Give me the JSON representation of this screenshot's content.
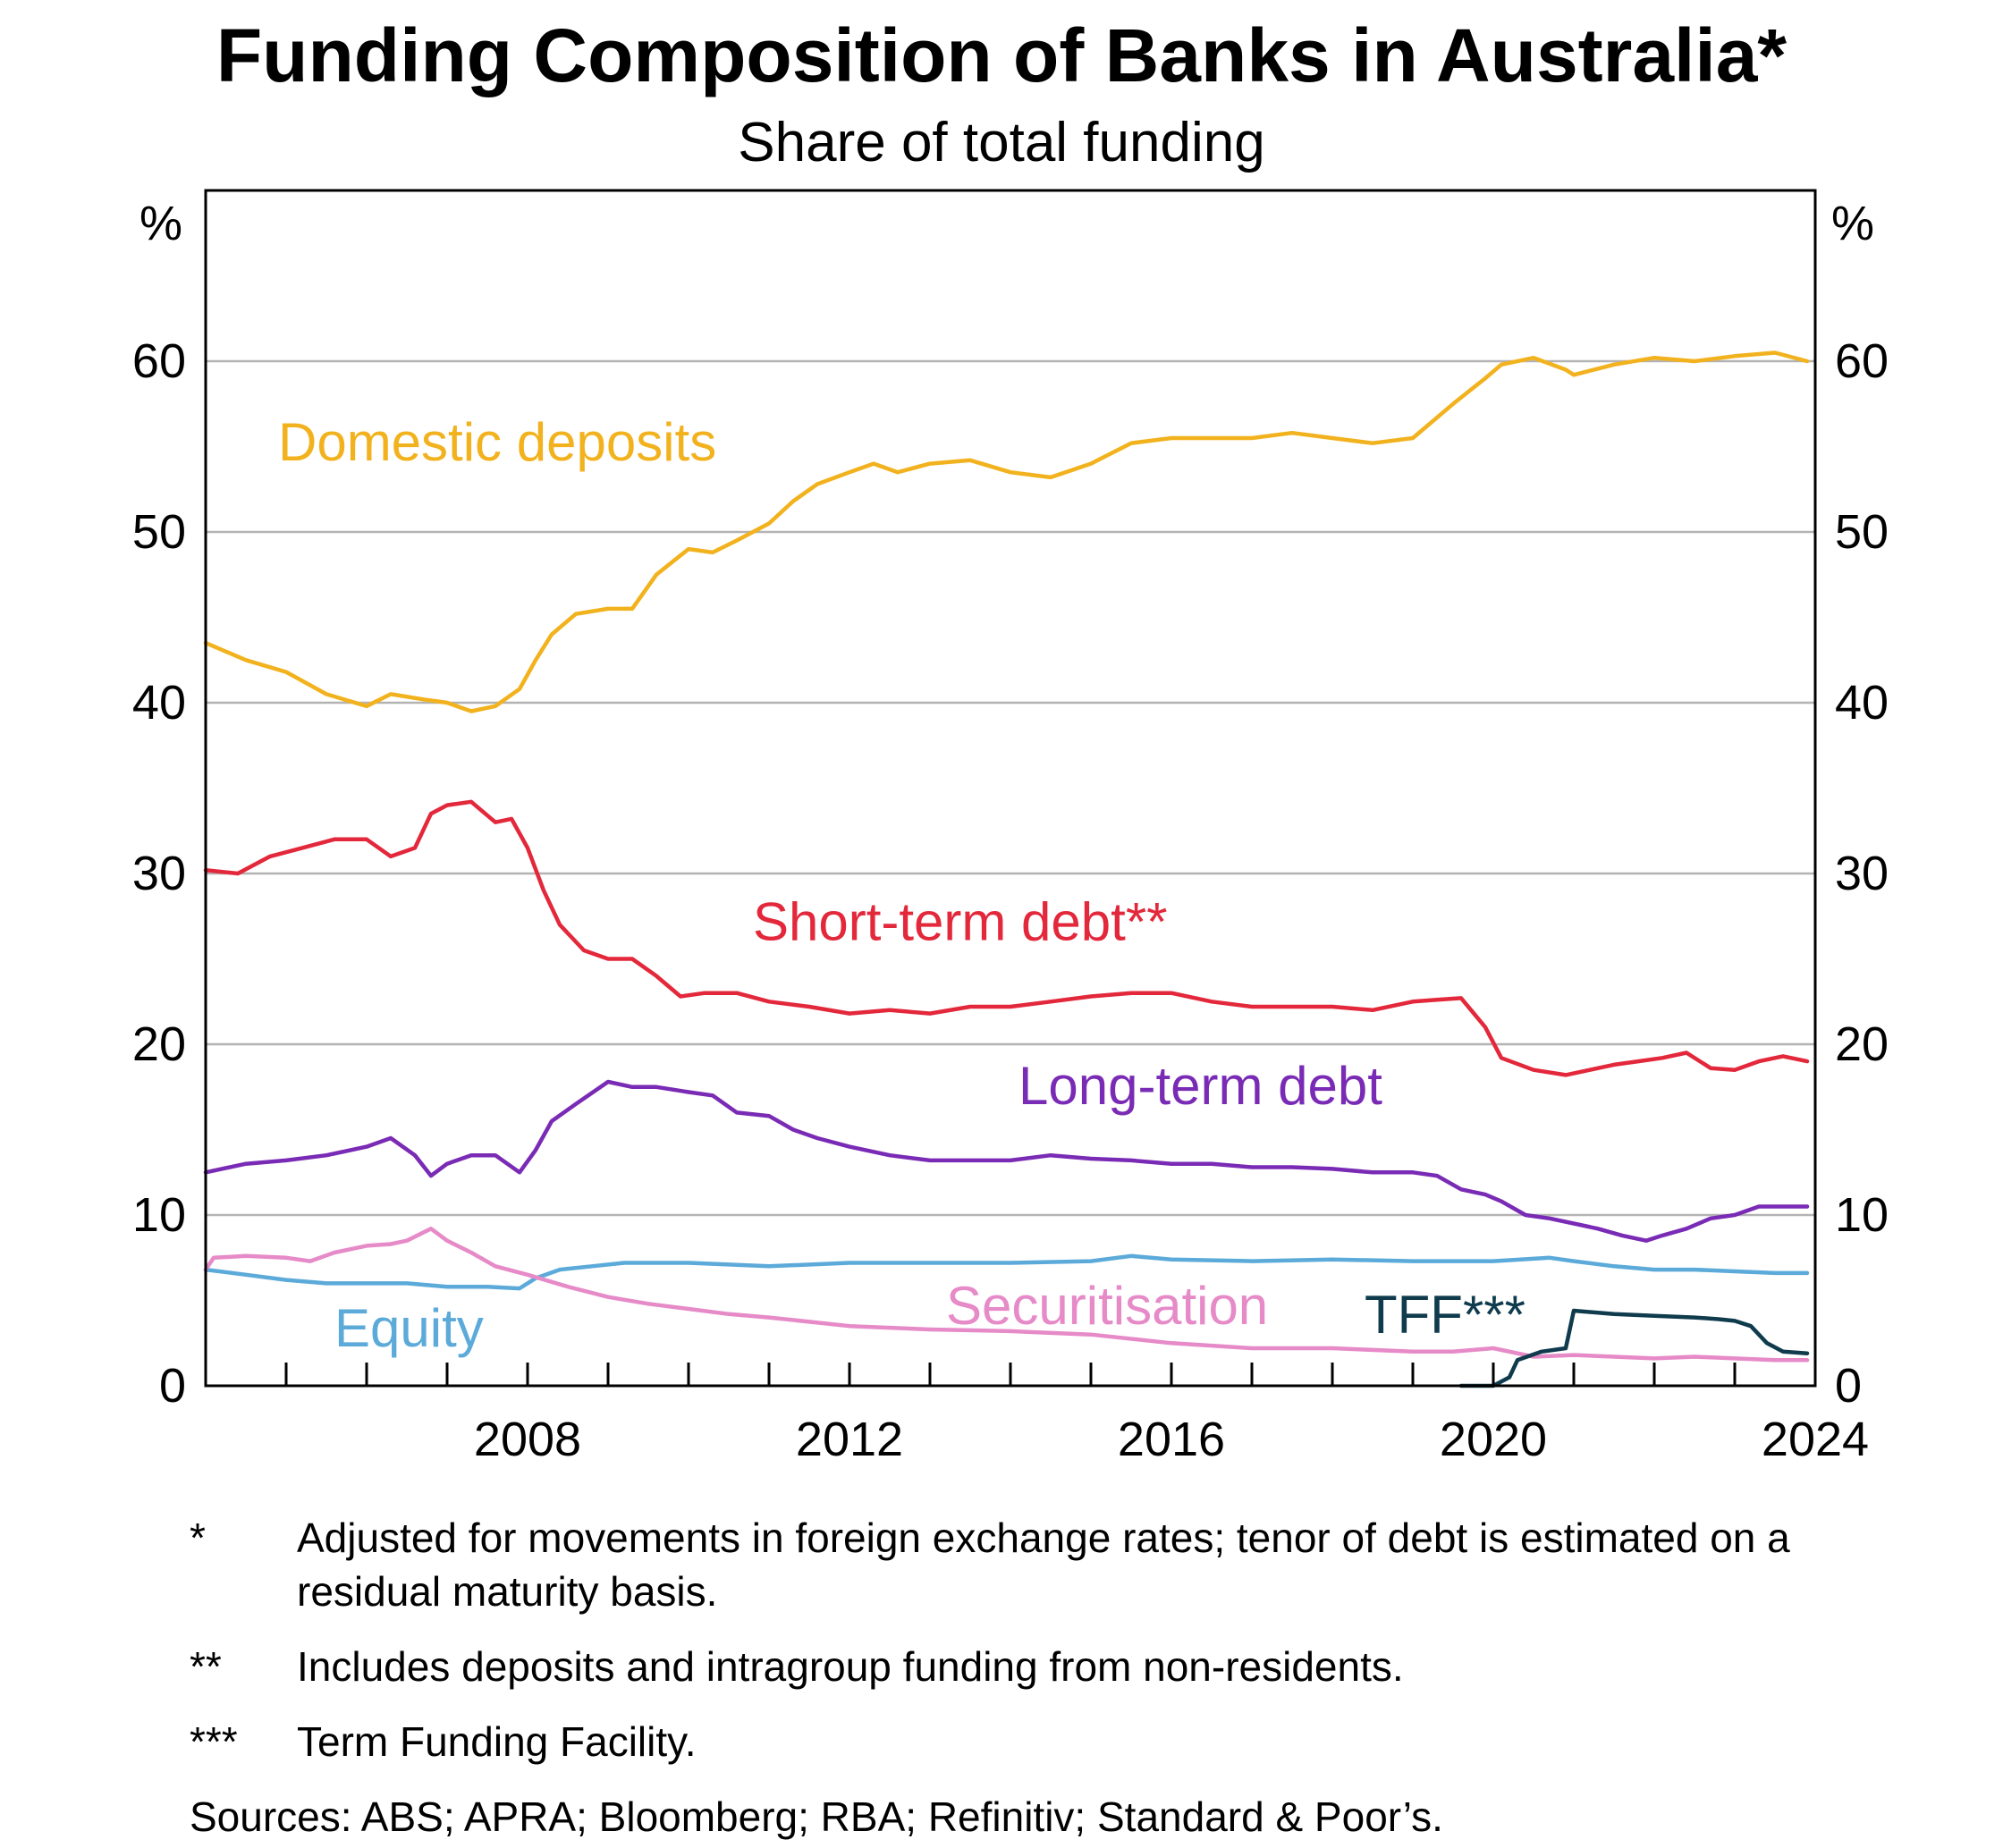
{
  "title": "Funding Composition of Banks in Australia*",
  "subtitle": "Share of total funding",
  "chart_data": {
    "type": "line",
    "title": "Funding Composition of Banks in Australia*",
    "subtitle": "Share of total funding",
    "ylabel_left": "%",
    "ylabel_right": "%",
    "xlabel": "",
    "xlim": [
      2004.0,
      2024.0
    ],
    "ylim": [
      0,
      70
    ],
    "y_ticks": [
      0,
      10,
      20,
      30,
      40,
      50,
      60
    ],
    "x_ticks": [
      2008,
      2012,
      2016,
      2020,
      2024
    ],
    "grid": "horizontal",
    "series": [
      {
        "name": "Domestic deposits",
        "color": "#F2B21E",
        "x": [
          2004.0,
          2004.5,
          2005.0,
          2005.5,
          2006.0,
          2006.3,
          2006.7,
          2007.0,
          2007.3,
          2007.6,
          2007.9,
          2008.1,
          2008.3,
          2008.6,
          2009.0,
          2009.3,
          2009.6,
          2010.0,
          2010.3,
          2010.6,
          2011.0,
          2011.3,
          2011.6,
          2012.0,
          2012.3,
          2012.6,
          2013.0,
          2013.5,
          2014.0,
          2014.5,
          2015.0,
          2015.5,
          2016.0,
          2016.5,
          2017.0,
          2017.5,
          2018.0,
          2018.5,
          2019.0,
          2019.5,
          2019.9,
          2020.1,
          2020.5,
          2020.9,
          2021.0,
          2021.5,
          2022.0,
          2022.5,
          2023.0,
          2023.5,
          2023.9
        ],
        "values": [
          43.5,
          42.5,
          41.8,
          40.5,
          39.8,
          40.5,
          40.2,
          40.0,
          39.5,
          39.8,
          40.8,
          42.5,
          44.0,
          45.2,
          45.5,
          45.5,
          47.5,
          49.0,
          48.8,
          49.5,
          50.5,
          51.8,
          52.8,
          53.5,
          54.0,
          53.5,
          54.0,
          54.2,
          53.5,
          53.2,
          54.0,
          55.2,
          55.5,
          55.5,
          55.5,
          55.8,
          55.5,
          55.2,
          55.5,
          57.5,
          59.0,
          59.8,
          60.2,
          59.5,
          59.2,
          59.8,
          60.2,
          60.0,
          60.3,
          60.5,
          60.0
        ]
      },
      {
        "name": "Short-term debt**",
        "color": "#E3283B",
        "x": [
          2004.0,
          2004.4,
          2004.8,
          2005.2,
          2005.6,
          2006.0,
          2006.3,
          2006.6,
          2006.8,
          2007.0,
          2007.3,
          2007.6,
          2007.8,
          2008.0,
          2008.2,
          2008.4,
          2008.7,
          2009.0,
          2009.3,
          2009.6,
          2009.9,
          2010.2,
          2010.6,
          2011.0,
          2011.5,
          2012.0,
          2012.5,
          2013.0,
          2013.5,
          2014.0,
          2014.5,
          2015.0,
          2015.5,
          2016.0,
          2016.5,
          2017.0,
          2017.5,
          2018.0,
          2018.5,
          2019.0,
          2019.3,
          2019.6,
          2019.9,
          2020.1,
          2020.5,
          2020.9,
          2021.2,
          2021.5,
          2021.8,
          2022.1,
          2022.4,
          2022.7,
          2023.0,
          2023.3,
          2023.6,
          2023.9
        ],
        "values": [
          30.2,
          30.0,
          31.0,
          31.5,
          32.0,
          32.0,
          31.0,
          31.5,
          33.5,
          34.0,
          34.2,
          33.0,
          33.2,
          31.5,
          29.0,
          27.0,
          25.5,
          25.0,
          25.0,
          24.0,
          22.8,
          23.0,
          23.0,
          22.5,
          22.2,
          21.8,
          22.0,
          21.8,
          22.2,
          22.2,
          22.5,
          22.8,
          23.0,
          23.0,
          22.5,
          22.2,
          22.2,
          22.2,
          22.0,
          22.5,
          22.6,
          22.7,
          21.0,
          19.2,
          18.5,
          18.2,
          18.5,
          18.8,
          19.0,
          19.2,
          19.5,
          18.6,
          18.5,
          19.0,
          19.3,
          19.0
        ]
      },
      {
        "name": "Long-term debt",
        "color": "#7A2BB5",
        "x": [
          2004.0,
          2004.5,
          2005.0,
          2005.5,
          2006.0,
          2006.3,
          2006.6,
          2006.8,
          2007.0,
          2007.3,
          2007.6,
          2007.9,
          2008.1,
          2008.3,
          2008.6,
          2009.0,
          2009.3,
          2009.6,
          2010.0,
          2010.3,
          2010.6,
          2011.0,
          2011.3,
          2011.6,
          2012.0,
          2012.5,
          2013.0,
          2013.5,
          2014.0,
          2014.5,
          2015.0,
          2015.5,
          2016.0,
          2016.5,
          2017.0,
          2017.5,
          2018.0,
          2018.5,
          2019.0,
          2019.3,
          2019.6,
          2019.9,
          2020.1,
          2020.4,
          2020.7,
          2021.0,
          2021.3,
          2021.6,
          2021.9,
          2022.1,
          2022.4,
          2022.7,
          2023.0,
          2023.3,
          2023.6,
          2023.9
        ],
        "values": [
          12.5,
          13.0,
          13.2,
          13.5,
          14.0,
          14.5,
          13.5,
          12.3,
          13.0,
          13.5,
          13.5,
          12.5,
          13.8,
          15.5,
          16.5,
          17.8,
          17.5,
          17.5,
          17.2,
          17.0,
          16.0,
          15.8,
          15.0,
          14.5,
          14.0,
          13.5,
          13.2,
          13.2,
          13.2,
          13.5,
          13.3,
          13.2,
          13.0,
          13.0,
          12.8,
          12.8,
          12.7,
          12.5,
          12.5,
          12.3,
          11.5,
          11.2,
          10.8,
          10.0,
          9.8,
          9.5,
          9.2,
          8.8,
          8.5,
          8.8,
          9.2,
          9.8,
          10.0,
          10.5,
          10.5,
          10.5
        ]
      },
      {
        "name": "Equity",
        "color": "#5BAAD9",
        "x": [
          2004.0,
          2004.5,
          2005.0,
          2005.5,
          2006.0,
          2006.5,
          2007.0,
          2007.5,
          2007.9,
          2008.1,
          2008.4,
          2008.8,
          2009.2,
          2010.0,
          2011.0,
          2012.0,
          2013.0,
          2014.0,
          2015.0,
          2015.5,
          2016.0,
          2017.0,
          2018.0,
          2019.0,
          2020.0,
          2020.7,
          2021.0,
          2021.5,
          2022.0,
          2022.5,
          2023.0,
          2023.5,
          2023.9
        ],
        "values": [
          6.8,
          6.5,
          6.2,
          6.0,
          6.0,
          6.0,
          5.8,
          5.8,
          5.7,
          6.3,
          6.8,
          7.0,
          7.2,
          7.2,
          7.0,
          7.2,
          7.2,
          7.2,
          7.3,
          7.6,
          7.4,
          7.3,
          7.4,
          7.3,
          7.3,
          7.5,
          7.3,
          7.0,
          6.8,
          6.8,
          6.7,
          6.6,
          6.6
        ]
      },
      {
        "name": "Securitisation",
        "color": "#E68AC8",
        "x": [
          2004.0,
          2004.1,
          2004.5,
          2005.0,
          2005.3,
          2005.6,
          2006.0,
          2006.3,
          2006.5,
          2006.8,
          2007.0,
          2007.3,
          2007.6,
          2008.0,
          2008.5,
          2009.0,
          2009.5,
          2010.0,
          2010.5,
          2011.0,
          2012.0,
          2013.0,
          2014.0,
          2015.0,
          2016.0,
          2017.0,
          2018.0,
          2019.0,
          2019.5,
          2020.0,
          2020.5,
          2021.0,
          2021.5,
          2022.0,
          2022.5,
          2023.0,
          2023.5,
          2023.9
        ],
        "values": [
          6.8,
          7.5,
          7.6,
          7.5,
          7.3,
          7.8,
          8.2,
          8.3,
          8.5,
          9.2,
          8.5,
          7.8,
          7.0,
          6.5,
          5.8,
          5.2,
          4.8,
          4.5,
          4.2,
          4.0,
          3.5,
          3.3,
          3.2,
          3.0,
          2.5,
          2.2,
          2.2,
          2.0,
          2.0,
          2.2,
          1.7,
          1.8,
          1.7,
          1.6,
          1.7,
          1.6,
          1.5,
          1.5
        ]
      },
      {
        "name": "TFF***",
        "color": "#0F3B4D",
        "x": [
          2019.6,
          2020.0,
          2020.2,
          2020.3,
          2020.6,
          2020.9,
          2021.0,
          2021.5,
          2022.0,
          2022.5,
          2022.8,
          2023.0,
          2023.2,
          2023.4,
          2023.6,
          2023.9
        ],
        "values": [
          0.0,
          0.0,
          0.5,
          1.5,
          2.0,
          2.2,
          4.4,
          4.2,
          4.1,
          4.0,
          3.9,
          3.8,
          3.5,
          2.5,
          2.0,
          1.9
        ]
      }
    ],
    "annotations": [
      {
        "text": "Domestic deposits",
        "series": "Domestic deposits"
      },
      {
        "text": "Short-term debt**",
        "series": "Short-term debt**"
      },
      {
        "text": "Long-term debt",
        "series": "Long-term debt"
      },
      {
        "text": "Equity",
        "series": "Equity"
      },
      {
        "text": "Securitisation",
        "series": "Securitisation"
      },
      {
        "text": "TFF***",
        "series": "TFF***"
      }
    ]
  },
  "footnotes": [
    {
      "mark": "*",
      "text": "Adjusted for movements in foreign exchange rates; tenor of debt is estimated on a residual maturity basis."
    },
    {
      "mark": "**",
      "text": "Includes deposits and intragroup funding from non-residents."
    },
    {
      "mark": "***",
      "text": "Term Funding Facility."
    }
  ],
  "sources": "Sources: ABS; APRA; Bloomberg; RBA; Refinitiv; Standard & Poor’s."
}
